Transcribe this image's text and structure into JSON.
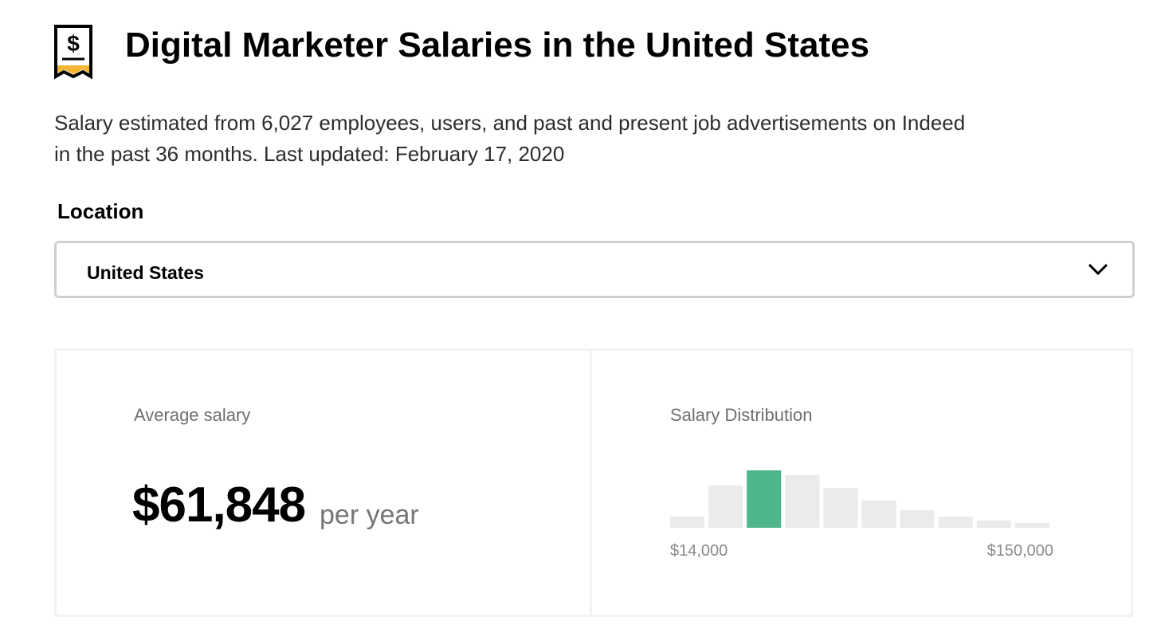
{
  "header": {
    "title": "Digital Marketer Salaries in the United States"
  },
  "description": [
    "Salary estimated from 6,027 employees, users, and past and present job advertisements on Indeed",
    "in the past 36 months. Last updated: February 17, 2020"
  ],
  "location": {
    "label": "Location",
    "selected": "United States"
  },
  "average": {
    "label": "Average salary",
    "value": "$61,848",
    "unit": "per year"
  },
  "chart_data": {
    "type": "histogram",
    "title": "Salary Distribution",
    "bins": [
      14000,
      27600,
      41200,
      54800,
      68400,
      82000,
      95600,
      109200,
      122800,
      136400,
      150000
    ],
    "values": [
      14,
      53,
      72,
      66,
      50,
      34,
      22,
      14,
      9,
      6
    ],
    "ylim": [
      0,
      72
    ],
    "xlim": [
      14000,
      150000
    ],
    "xticks": [
      {
        "value": 14000,
        "label": "$14,000"
      },
      {
        "value": 150000,
        "label": "$150,000"
      }
    ],
    "color": "#ebebeb",
    "highlight_color": "#4fb58a",
    "highlight_index": 2
  }
}
